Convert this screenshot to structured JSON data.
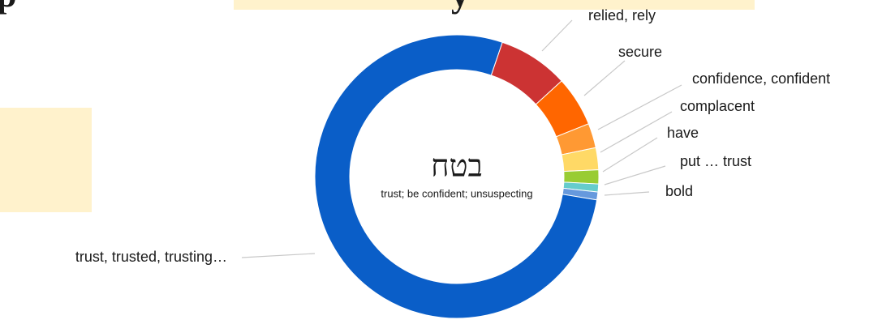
{
  "heading_fragments": [
    "p",
    "y"
  ],
  "chart_data": {
    "type": "donut",
    "center_title": "בטח",
    "center_subtitle": "trust; be confident; unsuspecting",
    "categories": [
      "relied, rely",
      "secure",
      "confidence, confident",
      "complacent",
      "have",
      "put … trust",
      "bold",
      "trust, trusted, trusting…"
    ],
    "values": [
      8,
      5.7,
      2.8,
      2.5,
      1.6,
      0.9,
      0.9,
      77.4
    ],
    "colors": [
      "#cc3333",
      "#ff6600",
      "#ff9933",
      "#ffd966",
      "#99cc33",
      "#66cccc",
      "#6699dd",
      "#0a5ec8"
    ]
  }
}
